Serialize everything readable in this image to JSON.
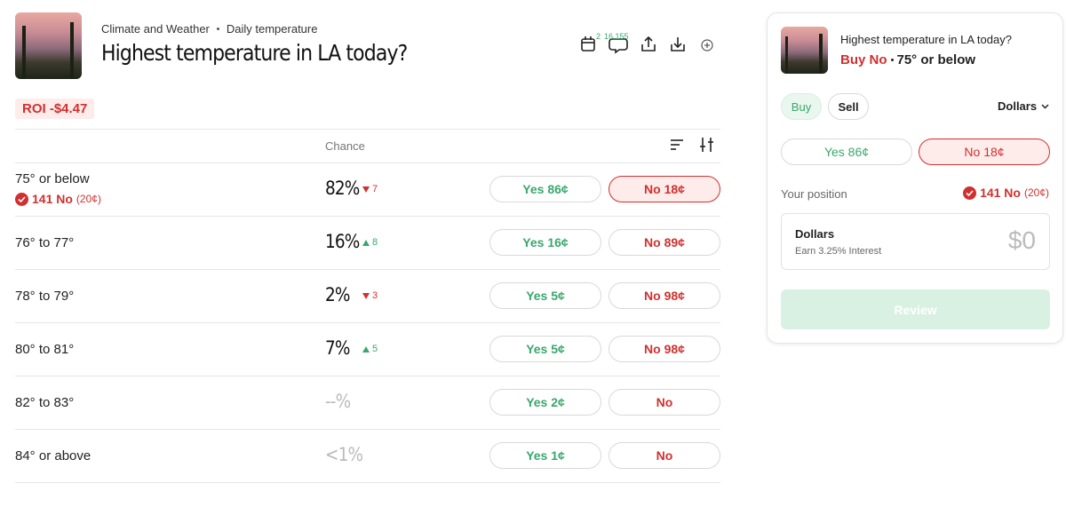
{
  "header": {
    "breadcrumb": [
      "Climate and Weather",
      "Daily temperature"
    ],
    "title": "Highest temperature in LA today?",
    "counts": [
      "2",
      "16,155"
    ]
  },
  "roi": "ROI -$4.47",
  "table": {
    "column": "Chance",
    "rows": [
      {
        "label": "75° or below",
        "position": "141 No",
        "position_price": "(20¢)",
        "chance": "82%",
        "change": "7",
        "direction": "down",
        "muted": false,
        "yes": "Yes 86¢",
        "no": "No 18¢",
        "selected": "no"
      },
      {
        "label": "76° to 77°",
        "chance": "16%",
        "change": "8",
        "direction": "up",
        "muted": false,
        "yes": "Yes 16¢",
        "no": "No 89¢"
      },
      {
        "label": "78° to 79°",
        "chance": "2%",
        "change": "3",
        "direction": "down",
        "muted": false,
        "yes": "Yes 5¢",
        "no": "No 98¢"
      },
      {
        "label": "80° to 81°",
        "chance": "7%",
        "change": "5",
        "direction": "up",
        "muted": false,
        "yes": "Yes 5¢",
        "no": "No 98¢"
      },
      {
        "label": "82° to 83°",
        "chance": "--%",
        "muted": true,
        "yes": "Yes 2¢",
        "no": "No"
      },
      {
        "label": "84° or above",
        "chance": "<1%",
        "muted": true,
        "yes": "Yes 1¢",
        "no": "No"
      }
    ]
  },
  "sidebar": {
    "title": "Highest temperature in LA today?",
    "side": "Buy No",
    "outcome": "75° or below",
    "tabs": [
      "Buy",
      "Sell"
    ],
    "currency": "Dollars",
    "yes": "Yes 86¢",
    "no": "No 18¢",
    "position_label": "Your position",
    "position": "141 No",
    "position_price": "(20¢)",
    "account": {
      "name": "Dollars",
      "note": "Earn 3.25% Interest",
      "amount": "$0"
    },
    "button": "Review"
  }
}
